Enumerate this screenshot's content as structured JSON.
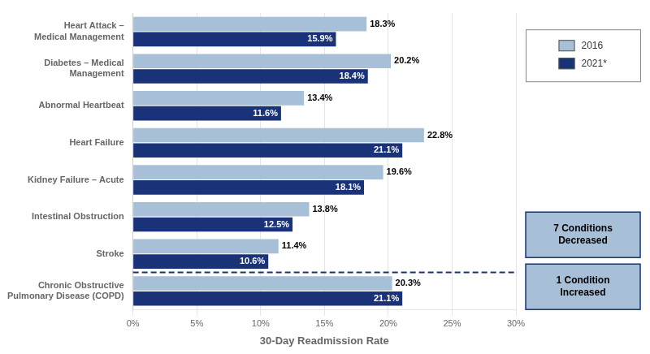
{
  "chart_data": {
    "type": "bar",
    "orientation": "horizontal",
    "categories": [
      "Heart Attack –\nMedical Management",
      "Diabetes – Medical\nManagement",
      "Abnormal Heartbeat",
      "Heart Failure",
      "Kidney Failure – Acute",
      "Intestinal Obstruction",
      "Stroke",
      "Chronic Obstructive\nPulmonary Disease (COPD)"
    ],
    "series": [
      {
        "name": "2016",
        "color": "#a8bfd8",
        "values": [
          18.3,
          20.2,
          13.4,
          22.8,
          19.6,
          13.8,
          11.4,
          20.3
        ],
        "value_labels": [
          "18.3%",
          "20.2%",
          "13.4%",
          "22.8%",
          "19.6%",
          "13.8%",
          "11.4%",
          "20.3%"
        ]
      },
      {
        "name": "2021*",
        "color": "#1a3278",
        "values": [
          15.9,
          18.4,
          11.6,
          21.1,
          18.1,
          12.5,
          10.6,
          21.1
        ],
        "value_labels": [
          "15.9%",
          "18.4%",
          "11.6%",
          "21.1%",
          "18.1%",
          "12.5%",
          "10.6%",
          "21.1%"
        ]
      }
    ],
    "xlabel": "30-Day Readmission Rate",
    "xlim": [
      0,
      30
    ],
    "xticks": [
      {
        "value": 0,
        "label": "0%"
      },
      {
        "value": 5,
        "label": "5%"
      },
      {
        "value": 10,
        "label": "10%"
      },
      {
        "value": 15,
        "label": "15%"
      },
      {
        "value": 20,
        "label": "20%"
      },
      {
        "value": 25,
        "label": "25%"
      },
      {
        "value": 30,
        "label": "30%"
      }
    ],
    "grid": true,
    "legend": "right",
    "data_labels": true,
    "annotations": [
      {
        "text": "7 Conditions\nDecreased"
      },
      {
        "text": "1 Condition\nIncreased"
      }
    ]
  }
}
